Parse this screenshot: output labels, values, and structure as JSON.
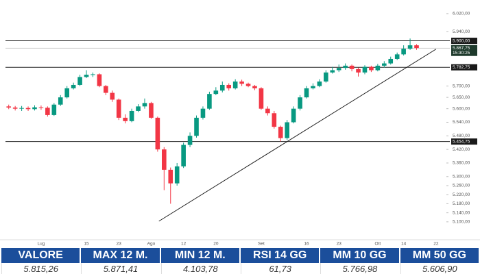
{
  "chart_data": {
    "type": "candlestick",
    "categories": [
      null,
      null,
      null,
      null,
      null,
      "Lug",
      null,
      null,
      null,
      null,
      null,
      null,
      "15",
      null,
      null,
      null,
      null,
      "23",
      null,
      null,
      null,
      null,
      "Ago",
      null,
      null,
      null,
      null,
      "12",
      null,
      null,
      null,
      null,
      "20",
      null,
      null,
      null,
      null,
      null,
      null,
      "Set",
      null,
      null,
      null,
      null,
      null,
      null,
      "16",
      null,
      null,
      null,
      null,
      "23",
      null,
      null,
      null,
      null,
      null,
      "Ott",
      null,
      null,
      null,
      "14",
      null,
      null,
      null,
      null,
      "22",
      null
    ],
    "open": [
      5610,
      5605,
      5600,
      5603,
      5598,
      5606,
      5604,
      5572,
      5618,
      5650,
      5690,
      5705,
      5740,
      5750,
      5752,
      5700,
      5670,
      5640,
      5560,
      5545,
      5590,
      5610,
      5625,
      5560,
      5420,
      5330,
      5270,
      5345,
      5440,
      5480,
      5560,
      5600,
      5665,
      5680,
      5705,
      5690,
      5720,
      5710,
      5700,
      5690,
      5600,
      5580,
      5520,
      5470,
      5540,
      5600,
      5650,
      5690,
      5700,
      5720,
      5760,
      5770,
      5780,
      5790,
      5775,
      5760,
      5785,
      5770,
      5790,
      5800,
      5820,
      5840,
      5865,
      5880,
      null,
      null,
      null,
      null
    ],
    "high": [
      5618,
      5612,
      5612,
      5610,
      5615,
      5614,
      5610,
      5625,
      5660,
      5700,
      5715,
      5750,
      5770,
      5760,
      5756,
      5705,
      5680,
      5645,
      5575,
      5600,
      5620,
      5645,
      5630,
      5565,
      5430,
      5340,
      5360,
      5450,
      5495,
      5570,
      5610,
      5675,
      5695,
      5720,
      5712,
      5730,
      5728,
      5715,
      5705,
      5695,
      5610,
      5590,
      5525,
      5550,
      5610,
      5660,
      5700,
      5712,
      5730,
      5770,
      5785,
      5795,
      5800,
      5795,
      5782,
      5792,
      5790,
      5798,
      5810,
      5830,
      5848,
      5880,
      5910,
      5885,
      null,
      null,
      null,
      null
    ],
    "low": [
      5598,
      5592,
      5590,
      5590,
      5592,
      5595,
      5565,
      5568,
      5612,
      5645,
      5685,
      5700,
      5735,
      5740,
      5695,
      5660,
      5630,
      5550,
      5535,
      5540,
      5585,
      5600,
      5555,
      5410,
      5240,
      5180,
      5260,
      5338,
      5430,
      5472,
      5552,
      5595,
      5660,
      5672,
      5680,
      5685,
      5700,
      5695,
      5682,
      5595,
      5570,
      5512,
      5455,
      5462,
      5535,
      5592,
      5645,
      5685,
      5695,
      5715,
      5755,
      5762,
      5772,
      5765,
      5742,
      5752,
      5762,
      5765,
      5782,
      5795,
      5815,
      5835,
      5860,
      5860,
      null,
      null,
      null,
      null
    ],
    "close": [
      5605,
      5600,
      5603,
      5598,
      5606,
      5604,
      5572,
      5618,
      5650,
      5690,
      5705,
      5740,
      5750,
      5752,
      5700,
      5670,
      5640,
      5560,
      5545,
      5590,
      5610,
      5625,
      5560,
      5420,
      5330,
      5270,
      5345,
      5440,
      5480,
      5560,
      5600,
      5665,
      5680,
      5705,
      5690,
      5720,
      5710,
      5700,
      5690,
      5600,
      5580,
      5520,
      5470,
      5540,
      5600,
      5650,
      5690,
      5700,
      5720,
      5760,
      5770,
      5780,
      5790,
      5775,
      5760,
      5785,
      5770,
      5790,
      5800,
      5820,
      5840,
      5865,
      5880,
      5868,
      null,
      null,
      null,
      null
    ],
    "up_color": "#089981",
    "down_color": "#f23645",
    "ylim": [
      5036,
      6056
    ],
    "yticks": [
      {
        "value": 6020,
        "label": "6.020,00"
      },
      {
        "value": 5940,
        "label": "5.940,00"
      },
      {
        "value": 5700,
        "label": "5.700,00"
      },
      {
        "value": 5650,
        "label": "5.650,00"
      },
      {
        "value": 5600,
        "label": "5.600,00"
      },
      {
        "value": 5540,
        "label": "5.540,00"
      },
      {
        "value": 5480,
        "label": "5.480,00"
      },
      {
        "value": 5420,
        "label": "5.420,00"
      },
      {
        "value": 5360,
        "label": "5.360,00"
      },
      {
        "value": 5300,
        "label": "5.300,00"
      },
      {
        "value": 5260,
        "label": "5.260,00"
      },
      {
        "value": 5220,
        "label": "5.220,00"
      },
      {
        "value": 5180,
        "label": "5.180,00"
      },
      {
        "value": 5140,
        "label": "5.140,00"
      },
      {
        "value": 5100,
        "label": "5.100,00"
      }
    ],
    "levels": [
      {
        "value": 5900,
        "label": "5.900,00"
      },
      {
        "value": 5782.75,
        "label": "5.782,75"
      },
      {
        "value": 5454.75,
        "label": "5.454,75"
      }
    ],
    "last_price": {
      "value": 5867.75,
      "label": "5.867,75",
      "time": "15:30:25"
    },
    "trendline": {
      "start": {
        "index": 23.2,
        "value": 5103
      },
      "end": {
        "index": 66,
        "value": 5863
      }
    },
    "grid": false
  },
  "table": {
    "headers": [
      "VALORE",
      "MAX 12 M.",
      "MIN 12 M.",
      "RSI 14 GG",
      "MM 10 GG",
      "MM 50 GG"
    ],
    "rows": [
      [
        "5.815,26",
        "5.871,41",
        "4.103,78",
        "61,73",
        "5.766,98",
        "5.606,90"
      ]
    ]
  }
}
